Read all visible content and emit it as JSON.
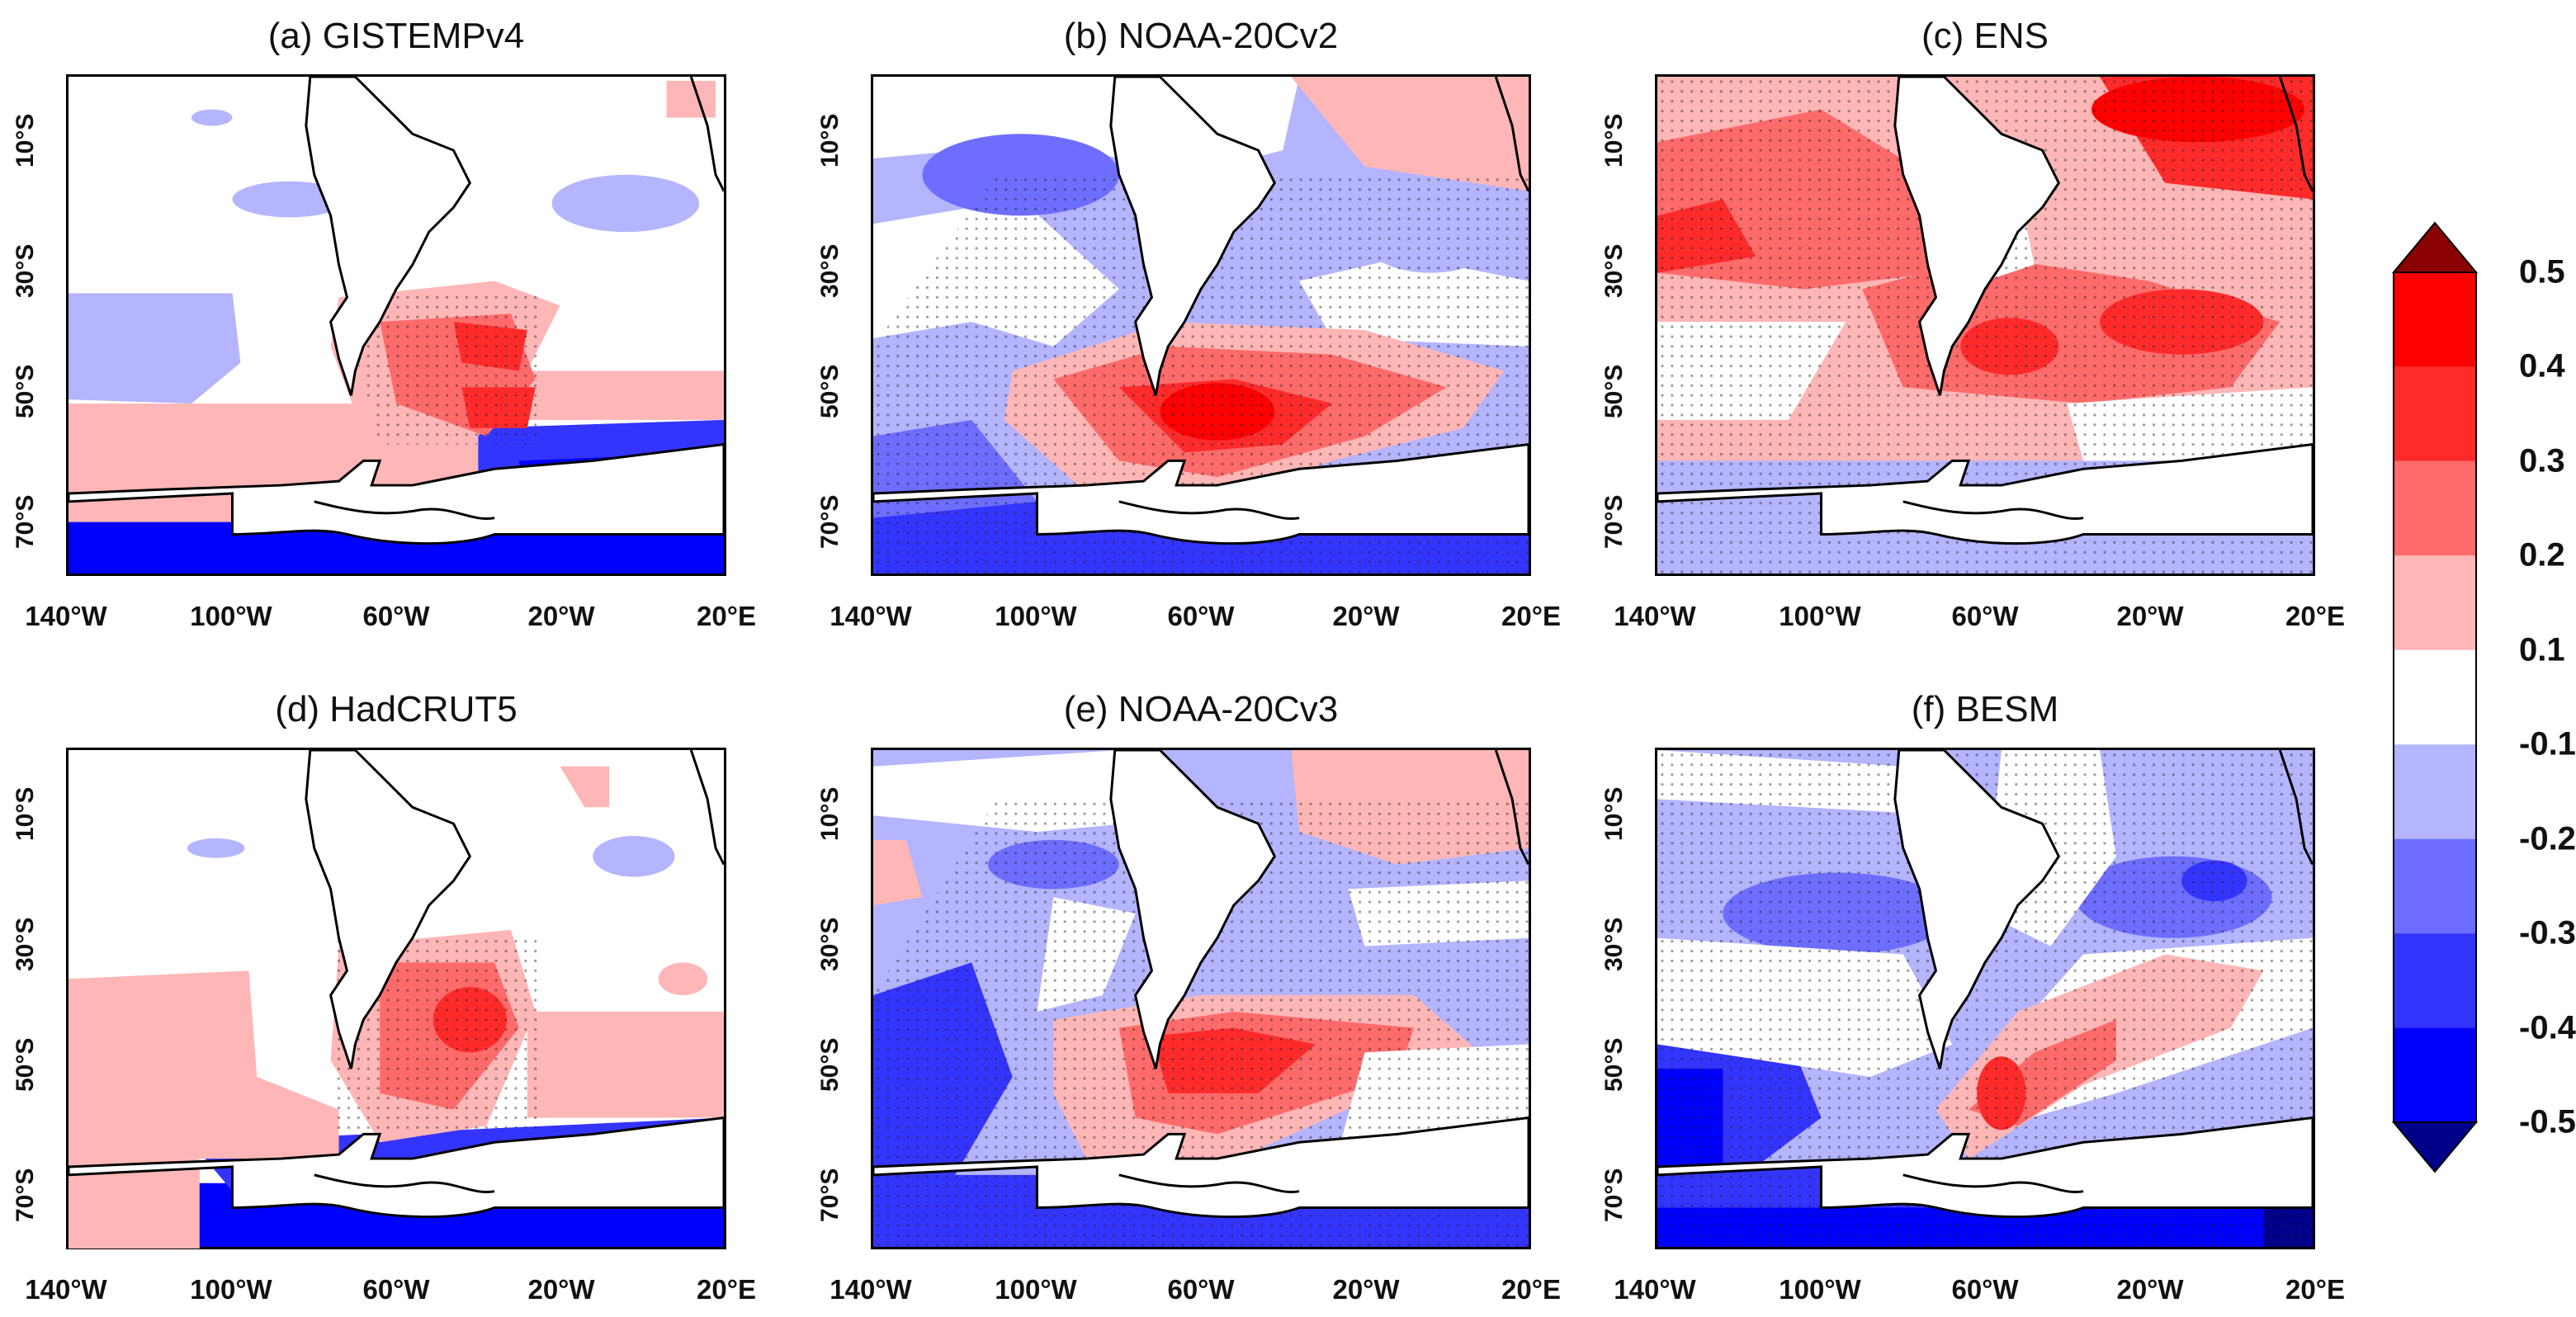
{
  "panels": [
    {
      "id": "a",
      "title": "(a) GISTEMPv4"
    },
    {
      "id": "b",
      "title": "(b) NOAA-20Cv2"
    },
    {
      "id": "c",
      "title": "(c) ENS"
    },
    {
      "id": "d",
      "title": "(d) HadCRUT5"
    },
    {
      "id": "e",
      "title": "(e) NOAA-20Cv3"
    },
    {
      "id": "f",
      "title": "(f) BESM"
    }
  ],
  "axes": {
    "lat_labels": [
      "10°S",
      "30°S",
      "50°S",
      "70°S"
    ],
    "lon_labels": [
      "140°W",
      "100°W",
      "60°W",
      "20°W",
      "20°E"
    ]
  },
  "colorbar": {
    "labels": [
      "0.5",
      "0.4",
      "0.3",
      "0.2",
      "0.1",
      "-0.1",
      "-0.2",
      "-0.3",
      "-0.4",
      "-0.5"
    ],
    "colors": [
      "#ff0000",
      "#ff2b2b",
      "#ff6b6b",
      "#ffb6b6",
      "#ffffff",
      "#b4b4ff",
      "#6d6dff",
      "#3434ff",
      "#0000ff"
    ],
    "extend_top": "#8b0000",
    "extend_bottom": "#00008b"
  }
}
